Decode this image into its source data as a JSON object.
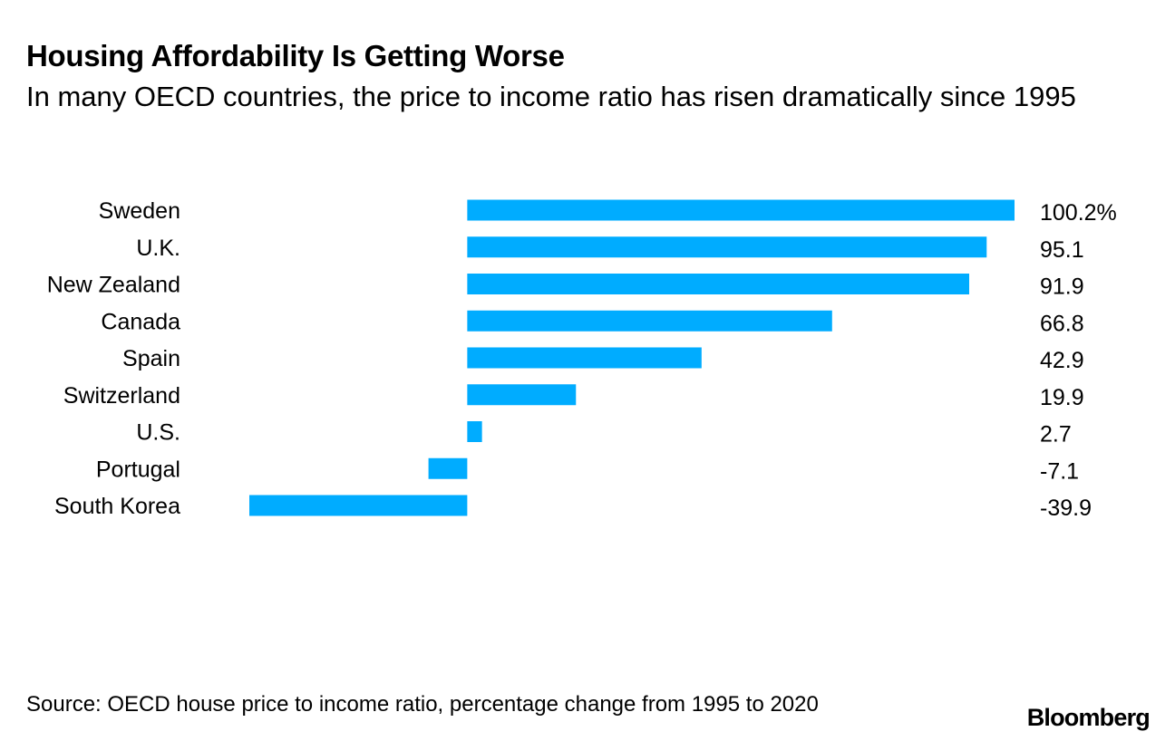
{
  "header": {
    "title": "Housing Affordability Is Getting Worse",
    "subtitle": "In many OECD countries, the price to income ratio has risen dramatically since 1995"
  },
  "footer": {
    "source": "Source: OECD house price to income ratio, percentage change from 1995 to 2020",
    "brand": "Bloomberg"
  },
  "colors": {
    "bar": "#00ACFF",
    "text": "#000000",
    "background": "#FFFFFF"
  },
  "chart_data": {
    "type": "bar",
    "orientation": "horizontal",
    "categories": [
      "Sweden",
      "U.K.",
      "New Zealand",
      "Canada",
      "Spain",
      "Switzerland",
      "U.S.",
      "Portugal",
      "South Korea"
    ],
    "values": [
      100.2,
      95.1,
      91.9,
      66.8,
      42.9,
      19.9,
      2.7,
      -7.1,
      -39.9
    ],
    "value_labels": [
      "100.2%",
      "95.1",
      "91.9",
      "66.8",
      "42.9",
      "19.9",
      "2.7",
      "-7.1",
      "-39.9"
    ],
    "xlim": [
      -39.9,
      100.2
    ],
    "grid": false,
    "legend": "none"
  }
}
